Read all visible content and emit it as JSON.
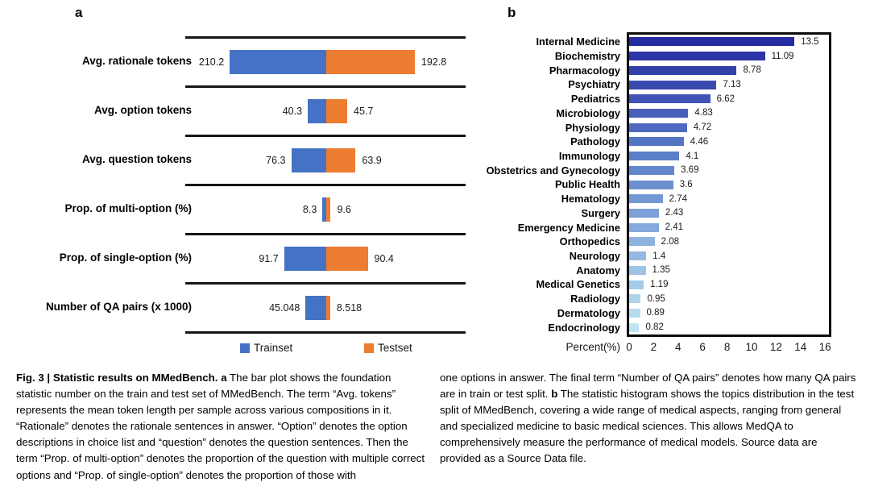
{
  "figure": {
    "panel_a_label": "a",
    "panel_b_label": "b"
  },
  "chart_data": [
    {
      "id": "panel_a",
      "type": "bar",
      "orientation": "horizontal-diverging",
      "grid": "row-separator-lines",
      "categories": [
        "Avg. rationale tokens",
        "Avg. option tokens",
        "Avg. question tokens",
        "Prop. of multi-option (%)",
        "Prop. of single-option (%)",
        "Number of QA pairs (x 1000)"
      ],
      "series": [
        {
          "name": "Trainset",
          "color": "#4472C4",
          "side": "left",
          "values": [
            210.2,
            40.3,
            76.3,
            8.3,
            91.7,
            45.048
          ]
        },
        {
          "name": "Testset",
          "color": "#ED7D31",
          "side": "right",
          "values": [
            192.8,
            45.7,
            63.9,
            9.6,
            90.4,
            8.518
          ]
        }
      ],
      "legend_position": "bottom"
    },
    {
      "id": "panel_b",
      "type": "bar",
      "orientation": "horizontal",
      "categories": [
        "Internal Medicine",
        "Biochemistry",
        "Pharmacology",
        "Psychiatry",
        "Pediatrics",
        "Microbiology",
        "Physiology",
        "Pathology",
        "Immunology",
        "Obstetrics and Gynecology",
        "Public Health",
        "Hematology",
        "Surgery",
        "Emergency Medicine",
        "Orthopedics",
        "Neurology",
        "Anatomy",
        "Medical Genetics",
        "Radiology",
        "Dermatology",
        "Endocrinology"
      ],
      "values": [
        13.5,
        11.09,
        8.78,
        7.13,
        6.62,
        4.83,
        4.72,
        4.46,
        4.1,
        3.69,
        3.6,
        2.74,
        2.43,
        2.41,
        2.08,
        1.4,
        1.35,
        1.19,
        0.95,
        0.89,
        0.82
      ],
      "xlabel": "Percent(%)",
      "x_ticks": [
        "0",
        "2",
        "4",
        "6",
        "8",
        "10",
        "12",
        "14",
        "16"
      ],
      "xlim": [
        0,
        16
      ],
      "bar_gradient": [
        "#252BA0",
        "#5B7EC9",
        "#BEE5F3"
      ],
      "legend_position": "none"
    }
  ],
  "caption": {
    "left_segments": [
      {
        "text": "Fig. 3 | Statistic results on MMedBench. ",
        "bold": true
      },
      {
        "text": "a",
        "bold": true
      },
      {
        "text": " The bar plot shows the foundation statistic number on the train and test set of MMedBench. The term “Avg. tokens” represents the mean token length per sample across various compositions in it. “Rationale” denotes the rationale sentences in answer. “Option” denotes the option descriptions in choice list and “question” denotes the question sentences. Then the term “Prop. of multi-option” denotes the proportion of the question with multiple correct options and “Prop. of single-option” denotes the proportion of those with",
        "bold": false
      }
    ],
    "right_segments": [
      {
        "text": "one options in answer. The final term “Number of QA pairs” denotes how many QA pairs are in train or test split. ",
        "bold": false
      },
      {
        "text": "b",
        "bold": true
      },
      {
        "text": " The statistic histogram shows the topics distribution in the test split of MMedBench, covering a wide range of medical aspects, ranging from general and specialized medicine to basic medical sciences. This allows MedQA to comprehensively measure the performance of medical models. Source data are provided as a Source Data file.",
        "bold": false
      }
    ]
  }
}
